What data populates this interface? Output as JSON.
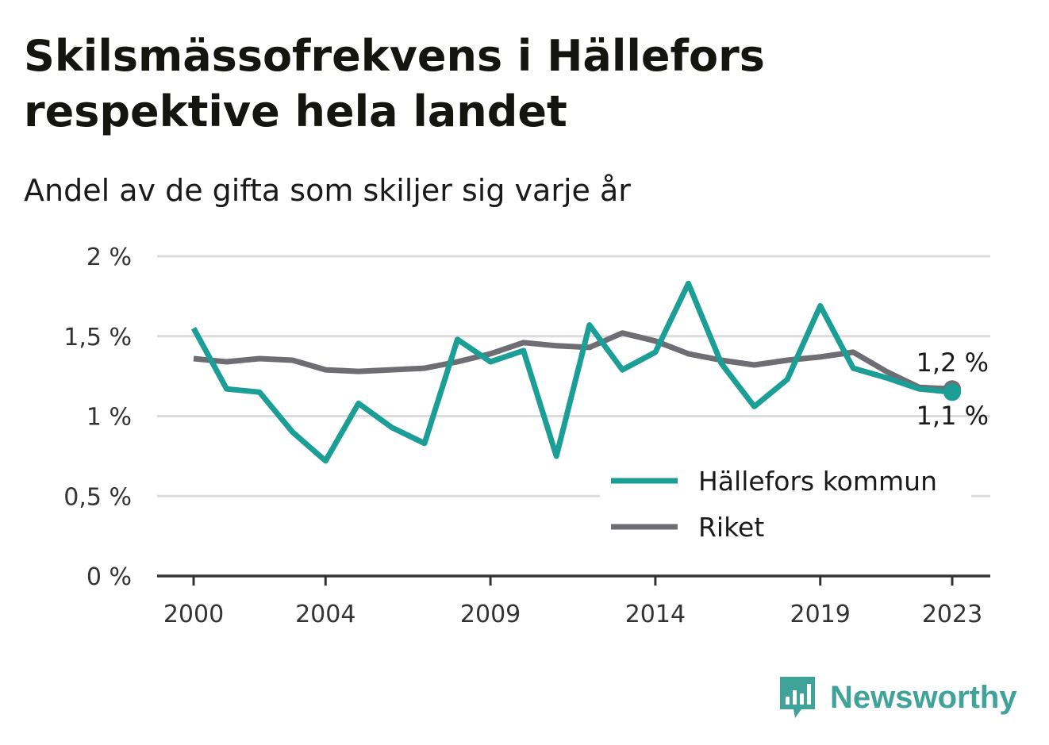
{
  "title": "Skilsmässofrekvens i Hällefors respektive hela landet",
  "subtitle": "Andel av de gifta som skiljer sig varje år",
  "brand": {
    "name": "Newsworthy",
    "icon": "newsworthy-logo-icon"
  },
  "colors": {
    "hallefors": "#1a9e96",
    "riket": "#6e6d73",
    "grid": "#dcdcdc",
    "axis": "#333333"
  },
  "chart_data": {
    "type": "line",
    "title": "Skilsmässofrekvens i Hällefors respektive hela landet",
    "subtitle": "Andel av de gifta som skiljer sig varje år",
    "xlabel": "",
    "ylabel": "",
    "x": [
      2000,
      2001,
      2002,
      2003,
      2004,
      2005,
      2006,
      2007,
      2008,
      2009,
      2010,
      2011,
      2012,
      2013,
      2014,
      2015,
      2016,
      2017,
      2018,
      2019,
      2020,
      2021,
      2022,
      2023
    ],
    "x_ticks": [
      "2000",
      "2004",
      "2009",
      "2014",
      "2019",
      "2023"
    ],
    "y_ticks": [
      "0 %",
      "0,5 %",
      "1 %",
      "1,5 %",
      "2 %"
    ],
    "ylim": [
      0,
      2
    ],
    "grid": true,
    "legend_position": "bottom-right",
    "series": [
      {
        "name": "Hällefors kommun",
        "color": "#1a9e96",
        "values": [
          1.55,
          1.17,
          1.15,
          0.9,
          0.72,
          1.08,
          0.93,
          0.83,
          1.48,
          1.34,
          1.41,
          0.75,
          1.57,
          1.29,
          1.4,
          1.83,
          1.33,
          1.06,
          1.23,
          1.69,
          1.3,
          1.24,
          1.17,
          1.15
        ],
        "end_label": "1,1 %"
      },
      {
        "name": "Riket",
        "color": "#6e6d73",
        "values": [
          1.36,
          1.34,
          1.36,
          1.35,
          1.29,
          1.28,
          1.29,
          1.3,
          1.34,
          1.39,
          1.46,
          1.44,
          1.43,
          1.52,
          1.47,
          1.39,
          1.35,
          1.32,
          1.35,
          1.37,
          1.4,
          1.28,
          1.18,
          1.17
        ],
        "end_label": "1,2 %"
      }
    ]
  }
}
